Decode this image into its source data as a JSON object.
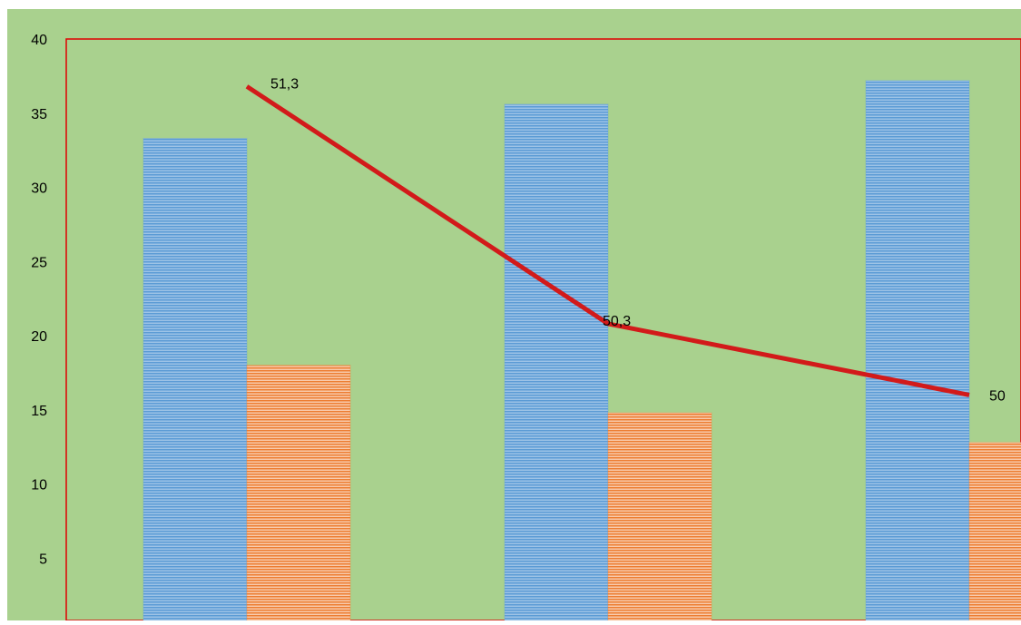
{
  "chart_data": {
    "type": "bar",
    "categories": [
      "",
      "",
      ""
    ],
    "series": [
      {
        "kind": "bar",
        "values": [
          33.3,
          35.6,
          37.2
        ],
        "color": "#5b9bd5"
      },
      {
        "kind": "bar",
        "values": [
          18.0,
          14.8,
          12.8
        ],
        "color": "#ed7d31"
      },
      {
        "kind": "line",
        "values": [
          36.8,
          20.8,
          16.0
        ],
        "labels": [
          "51,3",
          "50,3",
          "50"
        ],
        "color": "#d21a1a"
      }
    ],
    "ytick_labels": [
      "5",
      "10",
      "15",
      "20",
      "25",
      "30",
      "35",
      "40"
    ],
    "ylim": [
      0,
      40
    ],
    "grid": false,
    "legend": "none",
    "plot_background": "#a9d18e",
    "plot_border_color": "#e00000"
  }
}
